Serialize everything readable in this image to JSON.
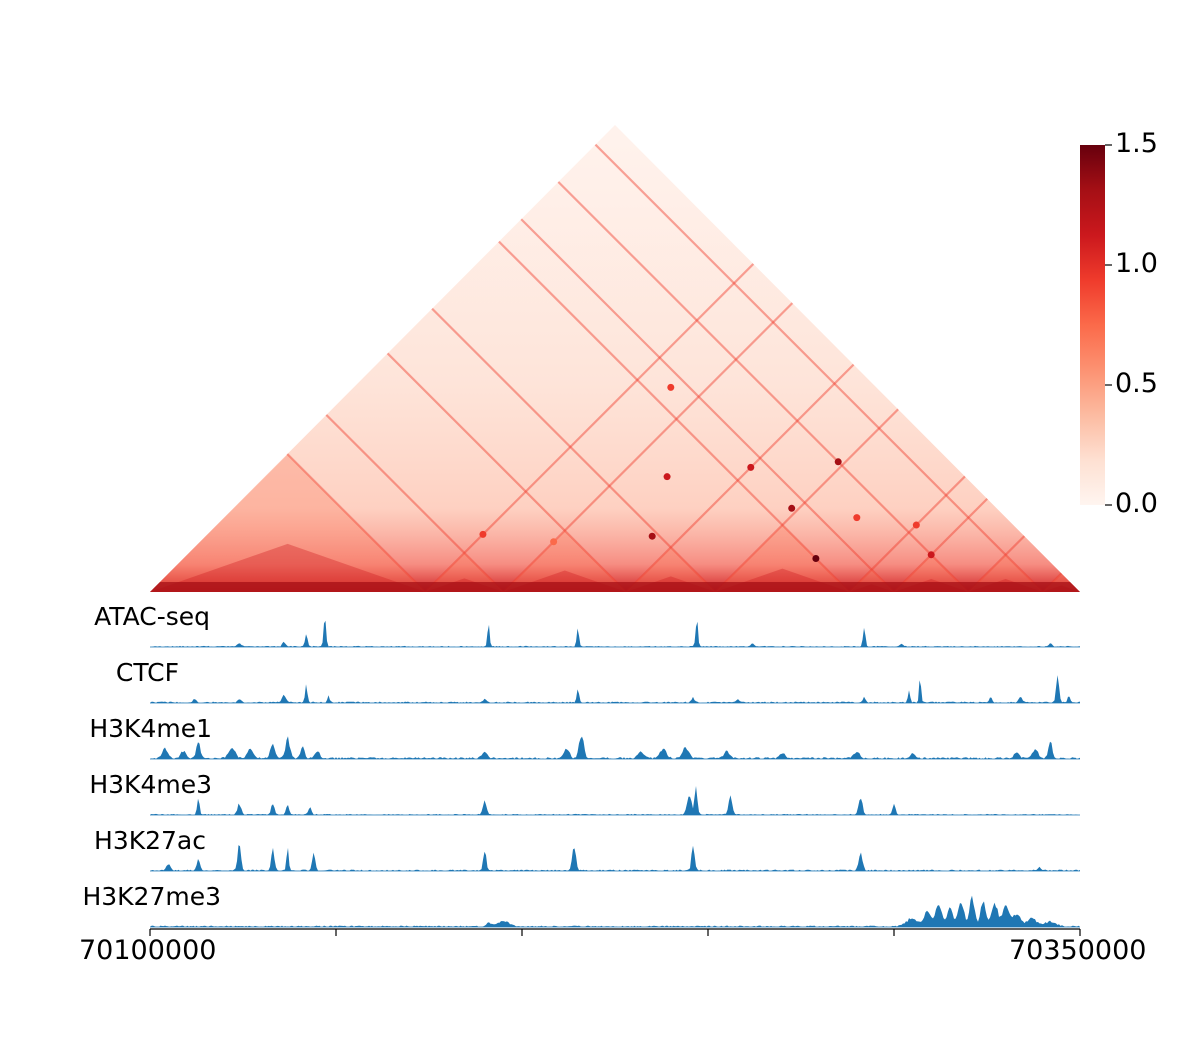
{
  "chart_data": [
    {
      "type": "heatmap",
      "shape": "triangle",
      "colormap": "Reds",
      "colorbar": {
        "ticks": [
          0.0,
          0.5,
          1.0,
          1.5
        ],
        "tick_labels": [
          "0.0",
          "0.5",
          "1.0",
          "1.5"
        ],
        "range": [
          0.0,
          1.5
        ]
      },
      "colors": {
        "low": "#fff5f0",
        "mid": "#fb6a4a",
        "high": "#67000d"
      },
      "loops": [
        {
          "a": 70174000,
          "b": 70205000,
          "value": 1.0
        },
        {
          "a": 70195000,
          "b": 70222000,
          "value": 0.8
        },
        {
          "a": 70185000,
          "b": 70295000,
          "value": 0.9
        },
        {
          "a": 70250000,
          "b": 70320000,
          "value": 1.3
        },
        {
          "a": 70220000,
          "b": 70250000,
          "value": 1.4
        },
        {
          "a": 70208000,
          "b": 70270000,
          "value": 1.2
        },
        {
          "a": 70270000,
          "b": 70288000,
          "value": 1.5
        },
        {
          "a": 70250000,
          "b": 70295000,
          "value": 1.4
        },
        {
          "a": 70228000,
          "b": 70295000,
          "value": 1.1
        },
        {
          "a": 70300000,
          "b": 70320000,
          "value": 1.1
        },
        {
          "a": 70270000,
          "b": 70310000,
          "value": 1.0
        },
        {
          "a": 70288000,
          "b": 70324000,
          "value": 0.9
        }
      ],
      "stripes": [
        70174000,
        70195000,
        70228000,
        70252000,
        70288000,
        70300000,
        70320000,
        70340000
      ]
    },
    {
      "type": "area",
      "x_range": [
        70100000,
        70350000
      ],
      "x_ticks": [
        70100000,
        70150000,
        70200000,
        70250000,
        70300000,
        70350000
      ],
      "x_tick_labels": [
        "70100000",
        "",
        "",
        "",
        "",
        "70350000"
      ],
      "color": "#1f77b4",
      "tracks": [
        {
          "name": "ATAC-seq",
          "baseline": 0.03,
          "peaks": [
            [
              70124000,
              0.1,
              500
            ],
            [
              70136000,
              0.15,
              400
            ],
            [
              70142000,
              0.45,
              300
            ],
            [
              70147000,
              0.95,
              300
            ],
            [
              70191000,
              0.65,
              300
            ],
            [
              70215000,
              0.6,
              300
            ],
            [
              70247000,
              0.85,
              300
            ],
            [
              70262000,
              0.1,
              400
            ],
            [
              70292000,
              0.6,
              300
            ],
            [
              70302000,
              0.1,
              400
            ],
            [
              70342000,
              0.1,
              400
            ]
          ]
        },
        {
          "name": "CTCF",
          "baseline": 0.04,
          "peaks": [
            [
              70112000,
              0.12,
              400
            ],
            [
              70124000,
              0.12,
              400
            ],
            [
              70136000,
              0.25,
              500
            ],
            [
              70142000,
              0.5,
              300
            ],
            [
              70148000,
              0.2,
              300
            ],
            [
              70190000,
              0.12,
              400
            ],
            [
              70215000,
              0.4,
              300
            ],
            [
              70246000,
              0.15,
              400
            ],
            [
              70258000,
              0.1,
              400
            ],
            [
              70292000,
              0.15,
              400
            ],
            [
              70304000,
              0.35,
              300
            ],
            [
              70307000,
              0.85,
              250
            ],
            [
              70326000,
              0.15,
              400
            ],
            [
              70334000,
              0.2,
              400
            ],
            [
              70344000,
              1.0,
              350
            ],
            [
              70347000,
              0.2,
              300
            ]
          ]
        },
        {
          "name": "H3K4me1",
          "baseline": 0.05,
          "peaks": [
            [
              70104000,
              0.3,
              700
            ],
            [
              70109000,
              0.25,
              700
            ],
            [
              70113000,
              0.55,
              500
            ],
            [
              70122000,
              0.3,
              900
            ],
            [
              70127000,
              0.3,
              800
            ],
            [
              70133000,
              0.5,
              600
            ],
            [
              70137000,
              0.6,
              600
            ],
            [
              70141000,
              0.4,
              500
            ],
            [
              70145000,
              0.25,
              600
            ],
            [
              70190000,
              0.2,
              700
            ],
            [
              70212000,
              0.3,
              700
            ],
            [
              70216000,
              0.8,
              600
            ],
            [
              70232000,
              0.2,
              900
            ],
            [
              70238000,
              0.3,
              800
            ],
            [
              70244000,
              0.35,
              800
            ],
            [
              70255000,
              0.25,
              700
            ],
            [
              70270000,
              0.15,
              800
            ],
            [
              70290000,
              0.2,
              800
            ],
            [
              70305000,
              0.15,
              700
            ],
            [
              70333000,
              0.2,
              700
            ],
            [
              70338000,
              0.3,
              700
            ],
            [
              70342000,
              0.55,
              500
            ]
          ]
        },
        {
          "name": "H3K4me3",
          "baseline": 0.03,
          "peaks": [
            [
              70113000,
              0.55,
              300
            ],
            [
              70124000,
              0.35,
              500
            ],
            [
              70133000,
              0.35,
              400
            ],
            [
              70137000,
              0.3,
              400
            ],
            [
              70143000,
              0.25,
              400
            ],
            [
              70190000,
              0.45,
              500
            ],
            [
              70245000,
              0.6,
              600
            ],
            [
              70246800,
              0.95,
              350
            ],
            [
              70256000,
              0.55,
              500
            ],
            [
              70291000,
              0.6,
              500
            ],
            [
              70300000,
              0.3,
              400
            ]
          ]
        },
        {
          "name": "H3K27ac",
          "baseline": 0.04,
          "peaks": [
            [
              70105000,
              0.2,
              500
            ],
            [
              70113000,
              0.35,
              400
            ],
            [
              70124000,
              0.95,
              400
            ],
            [
              70133000,
              0.75,
              400
            ],
            [
              70137000,
              0.7,
              300
            ],
            [
              70144000,
              0.55,
              400
            ],
            [
              70190000,
              0.65,
              400
            ],
            [
              70214000,
              0.7,
              500
            ],
            [
              70246000,
              0.85,
              400
            ],
            [
              70291000,
              0.6,
              500
            ],
            [
              70339000,
              0.1,
              500
            ]
          ]
        },
        {
          "name": "H3K27me3",
          "baseline": 0.04,
          "peaks": [
            [
              70191000,
              0.12,
              600
            ],
            [
              70195000,
              0.15,
              1600
            ],
            [
              70305000,
              0.25,
              1600
            ],
            [
              70309000,
              0.5,
              900
            ],
            [
              70312000,
              0.7,
              800
            ],
            [
              70315000,
              0.55,
              800
            ],
            [
              70318000,
              0.75,
              800
            ],
            [
              70321000,
              0.9,
              700
            ],
            [
              70324000,
              0.85,
              700
            ],
            [
              70327000,
              0.75,
              800
            ],
            [
              70330000,
              0.65,
              900
            ],
            [
              70333000,
              0.4,
              1000
            ],
            [
              70337000,
              0.25,
              1200
            ],
            [
              70342000,
              0.15,
              1500
            ]
          ]
        }
      ]
    }
  ]
}
